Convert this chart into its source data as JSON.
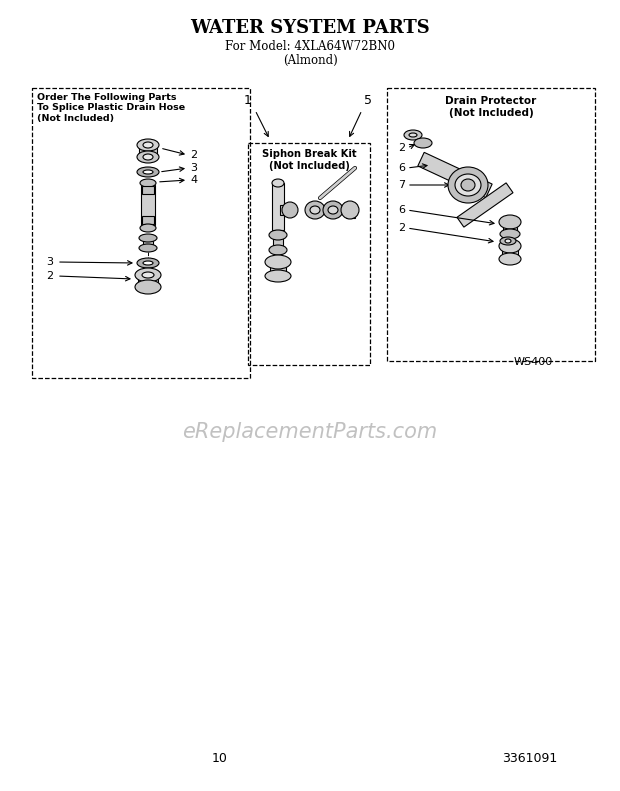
{
  "title": "WATER SYSTEM PARTS",
  "subtitle1": "For Model: 4XLA64W72BN0",
  "subtitle2": "(Almond)",
  "bg_color": "#ffffff",
  "title_fontsize": 13,
  "subtitle_fontsize": 8.5,
  "page_number": "10",
  "part_number": "3361091",
  "diagram_code": "WS400",
  "watermark": "eReplacementParts.com",
  "box1_label": "Order The Following Parts\nTo Splice Plastic Drain Hose\n(Not Included)",
  "box2_label": "Siphon Break Kit\n(Not Included)",
  "box3_label": "Drain Protector\n(Not Included)",
  "fig_w": 6.2,
  "fig_h": 7.91,
  "dpi": 100
}
